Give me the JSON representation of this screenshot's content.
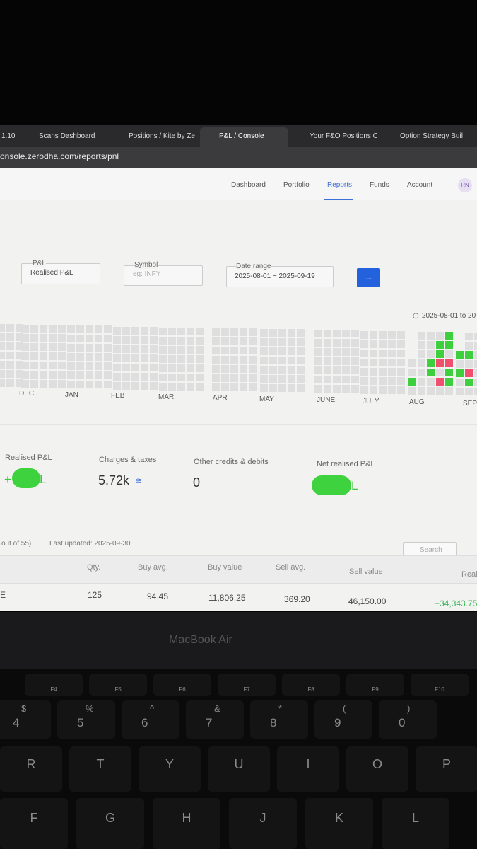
{
  "browser": {
    "tabs": [
      "1.10",
      "Scans Dashboard",
      "Positions / Kite by Ze",
      "P&L / Console",
      "Your F&O Positions C",
      "Option Strategy Buil"
    ],
    "url": "onsole.zerodha.com/reports/pnl"
  },
  "nav": {
    "items": [
      "Dashboard",
      "Portfolio",
      "Reports",
      "Funds",
      "Account"
    ],
    "avatar": "RN"
  },
  "filters": {
    "pnl_label": "P&L",
    "pnl_value": "Realised P&L",
    "symbol_label": "Symbol",
    "symbol_placeholder": "eg: INFY",
    "date_label": "Date range",
    "date_value": "2025-08-01 ~ 2025-09-19"
  },
  "heatmap": {
    "range": "2025-08-01 to 20",
    "months": [
      "DEC",
      "JAN",
      "FEB",
      "MAR",
      "APR",
      "MAY",
      "JUNE",
      "JULY",
      "AUG",
      "SEP"
    ]
  },
  "summary": {
    "realised_label": "Realised P&L",
    "realised_prefix": "+",
    "realised_suffix": "L",
    "charges_label": "Charges & taxes",
    "charges_value": "5.72k",
    "other_label": "Other credits & debits",
    "other_value": "0",
    "net_label": "Net realised P&L",
    "net_suffix": "L"
  },
  "table": {
    "status": "out of 55)",
    "updated": "Last updated: 2025-09-30",
    "search": "Search",
    "headers": [
      "Qty.",
      "Buy avg.",
      "Buy value",
      "Sell avg.",
      "Sell value",
      "Real"
    ],
    "row": [
      "E",
      "125",
      "94.45",
      "11,806.25",
      "369.20",
      "46,150.00",
      "+34,343.75"
    ]
  },
  "laptop": "MacBook Air",
  "keys": {
    "fn": [
      "F4",
      "F5",
      "F6",
      "F7",
      "F8",
      "F9",
      "F10"
    ],
    "symbols": [
      "$",
      "%",
      "^",
      "&",
      "*",
      "(",
      ")"
    ],
    "digits": [
      "4",
      "5",
      "6",
      "7",
      "8",
      "9",
      "0"
    ],
    "row_top": [
      "R",
      "T",
      "Y",
      "U",
      "I",
      "O",
      "P"
    ],
    "row_home": [
      "F",
      "G",
      "H",
      "J",
      "K",
      "L"
    ]
  }
}
